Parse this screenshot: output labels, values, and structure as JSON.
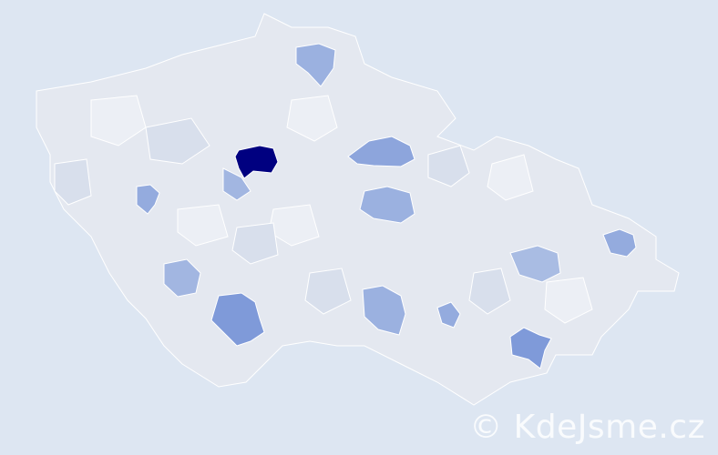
{
  "watermark": "© KdeJsme.cz",
  "colors": {
    "background": "#dde6f2",
    "country_base": "#e4e8f0",
    "region_border": "#ffffff",
    "scale_low": "#eef1f7",
    "scale_mid": "#a9bce3",
    "scale_high": "#000080"
  },
  "highlighted_regions": [
    {
      "id": "prague",
      "intensity": 1.0
    },
    {
      "id": "ceske-budejovice",
      "intensity": 0.5
    },
    {
      "id": "brno",
      "intensity": 0.5
    },
    {
      "id": "hradec-kralove",
      "intensity": 0.4
    },
    {
      "id": "plzen",
      "intensity": 0.35
    },
    {
      "id": "ostrava",
      "intensity": 0.35
    },
    {
      "id": "liberec",
      "intensity": 0.3
    },
    {
      "id": "jihlava",
      "intensity": 0.3
    },
    {
      "id": "pardubice",
      "intensity": 0.3
    },
    {
      "id": "kladno",
      "intensity": 0.25
    },
    {
      "id": "klatovy",
      "intensity": 0.25
    },
    {
      "id": "trebic",
      "intensity": 0.35
    },
    {
      "id": "olomouc",
      "intensity": 0.2
    }
  ]
}
